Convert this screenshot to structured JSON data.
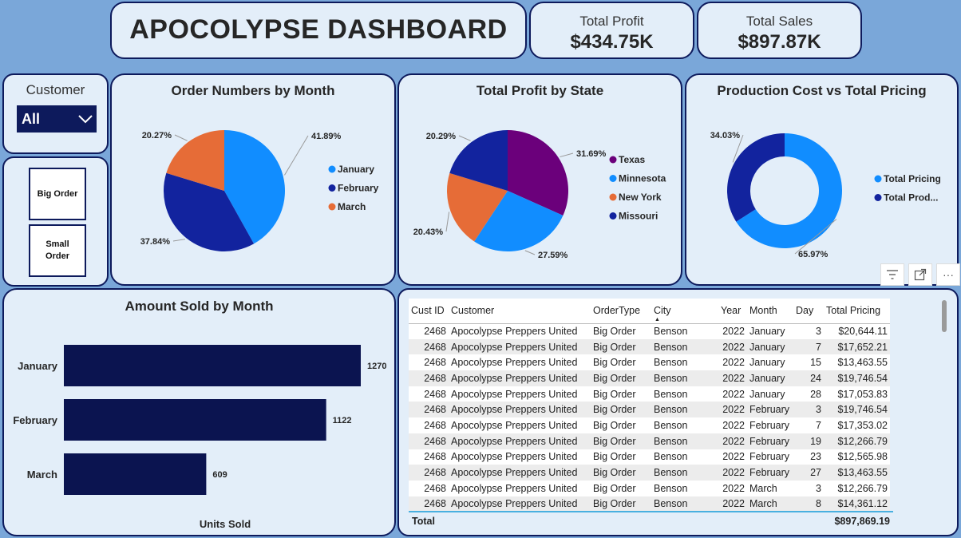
{
  "header": {
    "title": "APOCOLYPSE DASHBOARD"
  },
  "kpis": {
    "profit": {
      "label": "Total Profit",
      "value": "$434.75K"
    },
    "sales": {
      "label": "Total Sales",
      "value": "$897.87K"
    }
  },
  "slicer": {
    "title": "Customer",
    "selected": "All"
  },
  "buttons": {
    "big_order": "Big Order",
    "small_order_line1": "Small",
    "small_order_line2": "Order"
  },
  "charts": {
    "orders_by_month": {
      "title": "Order Numbers by Month"
    },
    "profit_by_state": {
      "title": "Total Profit by State"
    },
    "cost_vs_pricing": {
      "title": "Production Cost vs Total Pricing"
    },
    "amount_sold": {
      "title": "Amount Sold by Month",
      "xlabel": "Units Sold"
    }
  },
  "chart_data": [
    {
      "type": "pie",
      "title": "Order Numbers by Month",
      "labels": [
        "January",
        "February",
        "March"
      ],
      "values": [
        41.89,
        37.84,
        20.27
      ],
      "value_labels": [
        "41.89%",
        "37.84%",
        "20.27%"
      ],
      "colors": [
        "#118dff",
        "#12239e",
        "#e66c37"
      ],
      "legend": "right"
    },
    {
      "type": "pie",
      "title": "Total Profit by State",
      "labels": [
        "Texas",
        "Minnesota",
        "New York",
        "Missouri"
      ],
      "values": [
        31.69,
        27.59,
        20.43,
        20.29
      ],
      "value_labels": [
        "31.69%",
        "27.59%",
        "20.43%",
        "20.29%"
      ],
      "colors": [
        "#6b007b",
        "#118dff",
        "#e66c37",
        "#12239e"
      ],
      "legend": "right"
    },
    {
      "type": "pie",
      "title": "Production Cost vs Total Pricing",
      "labels": [
        "Total Pricing",
        "Total Prod..."
      ],
      "values": [
        65.97,
        34.03
      ],
      "value_labels": [
        "65.97%",
        "34.03%"
      ],
      "colors": [
        "#118dff",
        "#12239e"
      ],
      "donut": true,
      "legend": "right"
    },
    {
      "type": "bar",
      "title": "Amount Sold by Month",
      "orientation": "horizontal",
      "categories": [
        "January",
        "February",
        "March"
      ],
      "values": [
        1270,
        1122,
        609
      ],
      "xlabel": "Units Sold",
      "color": "#0b1450"
    }
  ],
  "table": {
    "columns": [
      "Cust ID",
      "Customer",
      "OrderType",
      "City",
      "Year",
      "Month",
      "Day",
      "Total Pricing"
    ],
    "rows": [
      [
        "2468",
        "Apocolypse Preppers United",
        "Big Order",
        "Benson",
        "2022",
        "January",
        "3",
        "$20,644.11"
      ],
      [
        "2468",
        "Apocolypse Preppers United",
        "Big Order",
        "Benson",
        "2022",
        "January",
        "7",
        "$17,652.21"
      ],
      [
        "2468",
        "Apocolypse Preppers United",
        "Big Order",
        "Benson",
        "2022",
        "January",
        "15",
        "$13,463.55"
      ],
      [
        "2468",
        "Apocolypse Preppers United",
        "Big Order",
        "Benson",
        "2022",
        "January",
        "24",
        "$19,746.54"
      ],
      [
        "2468",
        "Apocolypse Preppers United",
        "Big Order",
        "Benson",
        "2022",
        "January",
        "28",
        "$17,053.83"
      ],
      [
        "2468",
        "Apocolypse Preppers United",
        "Big Order",
        "Benson",
        "2022",
        "February",
        "3",
        "$19,746.54"
      ],
      [
        "2468",
        "Apocolypse Preppers United",
        "Big Order",
        "Benson",
        "2022",
        "February",
        "7",
        "$17,353.02"
      ],
      [
        "2468",
        "Apocolypse Preppers United",
        "Big Order",
        "Benson",
        "2022",
        "February",
        "19",
        "$12,266.79"
      ],
      [
        "2468",
        "Apocolypse Preppers United",
        "Big Order",
        "Benson",
        "2022",
        "February",
        "23",
        "$12,565.98"
      ],
      [
        "2468",
        "Apocolypse Preppers United",
        "Big Order",
        "Benson",
        "2022",
        "February",
        "27",
        "$13,463.55"
      ],
      [
        "2468",
        "Apocolypse Preppers United",
        "Big Order",
        "Benson",
        "2022",
        "March",
        "3",
        "$12,266.79"
      ],
      [
        "2468",
        "Apocolypse Preppers United",
        "Big Order",
        "Benson",
        "2022",
        "March",
        "8",
        "$14,361.12"
      ]
    ],
    "total_label": "Total",
    "total_value": "$897,869.19"
  },
  "toolbar": {
    "icons": [
      "filter-icon",
      "focus-mode-icon",
      "more-options-icon"
    ],
    "more_label": "···"
  }
}
